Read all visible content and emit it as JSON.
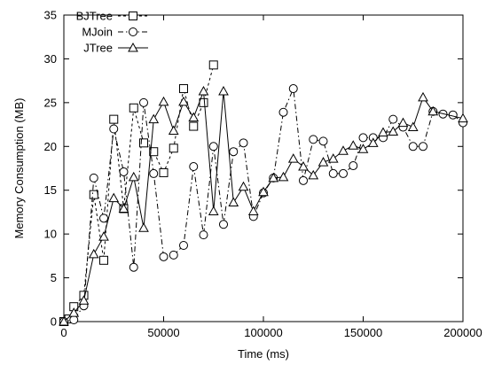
{
  "chart_data": {
    "type": "line",
    "xlabel": "Time (ms)",
    "ylabel": "Memory Consumption (MB)",
    "xlim": [
      0,
      200000
    ],
    "ylim": [
      0,
      35
    ],
    "xticks": [
      0,
      50000,
      100000,
      150000,
      200000
    ],
    "yticks": [
      0,
      5,
      10,
      15,
      20,
      25,
      30,
      35
    ],
    "xtick_labels": [
      "0",
      "50000",
      "100000",
      "150000",
      "200000"
    ],
    "ytick_labels": [
      "0",
      "5",
      "10",
      "15",
      "20",
      "25",
      "30",
      "35"
    ],
    "legend_position": "top-left",
    "grid": false,
    "series": [
      {
        "name": "BJTree",
        "marker": "square",
        "line_style": "dashed",
        "points": [
          [
            0,
            0
          ],
          [
            2500,
            0.3
          ],
          [
            5000,
            1.7
          ],
          [
            10000,
            3.0
          ],
          [
            15000,
            14.5
          ],
          [
            20000,
            7.0
          ],
          [
            25000,
            23.1
          ],
          [
            30000,
            12.9
          ],
          [
            35000,
            24.4
          ],
          [
            40000,
            20.4
          ],
          [
            45000,
            19.4
          ],
          [
            50000,
            17.0
          ],
          [
            55000,
            19.8
          ],
          [
            60000,
            26.6
          ],
          [
            65000,
            22.3
          ],
          [
            70000,
            25.0
          ],
          [
            75000,
            29.3
          ]
        ]
      },
      {
        "name": "MJoin",
        "marker": "circle",
        "line_style": "dash-dot",
        "points": [
          [
            0,
            0
          ],
          [
            5000,
            0.2
          ],
          [
            10000,
            1.8
          ],
          [
            15000,
            16.4
          ],
          [
            20000,
            11.8
          ],
          [
            25000,
            22.0
          ],
          [
            30000,
            17.1
          ],
          [
            35000,
            6.2
          ],
          [
            40000,
            25.0
          ],
          [
            45000,
            16.9
          ],
          [
            50000,
            7.4
          ],
          [
            55000,
            7.6
          ],
          [
            60000,
            8.7
          ],
          [
            65000,
            17.7
          ],
          [
            70000,
            9.9
          ],
          [
            75000,
            20.0
          ],
          [
            80000,
            11.1
          ],
          [
            85000,
            19.4
          ],
          [
            90000,
            20.4
          ],
          [
            95000,
            12.0
          ],
          [
            100000,
            14.7
          ],
          [
            105000,
            16.4
          ],
          [
            110000,
            23.9
          ],
          [
            115000,
            26.6
          ],
          [
            120000,
            16.1
          ],
          [
            125000,
            20.8
          ],
          [
            130000,
            20.6
          ],
          [
            135000,
            16.9
          ],
          [
            140000,
            16.9
          ],
          [
            145000,
            17.8
          ],
          [
            150000,
            21.0
          ],
          [
            155000,
            21.0
          ],
          [
            160000,
            21.0
          ],
          [
            165000,
            23.1
          ],
          [
            170000,
            22.2
          ],
          [
            175000,
            20.0
          ],
          [
            180000,
            20.0
          ],
          [
            185000,
            24.0
          ],
          [
            190000,
            23.7
          ],
          [
            195000,
            23.6
          ],
          [
            200000,
            22.7
          ]
        ]
      },
      {
        "name": "JTree",
        "marker": "triangle",
        "line_style": "solid",
        "points": [
          [
            0,
            0
          ],
          [
            5000,
            1.0
          ],
          [
            10000,
            2.4
          ],
          [
            15000,
            7.7
          ],
          [
            20000,
            9.7
          ],
          [
            25000,
            14.1
          ],
          [
            30000,
            12.9
          ],
          [
            35000,
            16.5
          ],
          [
            40000,
            10.7
          ],
          [
            45000,
            23.1
          ],
          [
            50000,
            25.1
          ],
          [
            55000,
            21.8
          ],
          [
            60000,
            25.1
          ],
          [
            65000,
            23.3
          ],
          [
            70000,
            26.3
          ],
          [
            75000,
            12.6
          ],
          [
            80000,
            26.3
          ],
          [
            85000,
            13.6
          ],
          [
            90000,
            15.4
          ],
          [
            95000,
            12.6
          ],
          [
            100000,
            14.8
          ],
          [
            105000,
            16.4
          ],
          [
            110000,
            16.5
          ],
          [
            115000,
            18.6
          ],
          [
            120000,
            17.7
          ],
          [
            125000,
            16.7
          ],
          [
            130000,
            18.2
          ],
          [
            135000,
            18.6
          ],
          [
            140000,
            19.5
          ],
          [
            145000,
            20.1
          ],
          [
            150000,
            19.7
          ],
          [
            155000,
            20.4
          ],
          [
            160000,
            21.6
          ],
          [
            165000,
            21.7
          ],
          [
            170000,
            22.7
          ],
          [
            175000,
            22.2
          ],
          [
            180000,
            25.6
          ],
          [
            185000,
            24.0
          ],
          [
            200000,
            23.2
          ]
        ]
      }
    ]
  }
}
